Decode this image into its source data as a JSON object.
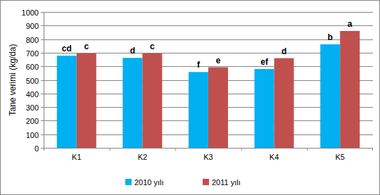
{
  "chart_data": {
    "type": "bar",
    "y_label": "Tane verimi (kg/da)",
    "categories": [
      "K1",
      "K2",
      "K3",
      "K4",
      "K5"
    ],
    "series": [
      {
        "name": "2010 yılı",
        "color": "#00b0f0",
        "values": [
          678,
          662,
          558,
          580,
          762
        ],
        "annotations": [
          "cd",
          "d",
          "f",
          "ef",
          "b"
        ]
      },
      {
        "name": "2011 yılı",
        "color": "#c0504d",
        "values": [
          695,
          695,
          593,
          660,
          860
        ],
        "annotations": [
          "c",
          "c",
          "e",
          "d",
          "a"
        ]
      }
    ],
    "ylim": [
      0,
      1000
    ],
    "yticks": [
      0,
      100,
      200,
      300,
      400,
      500,
      600,
      700,
      800,
      900,
      1000
    ],
    "grid": true,
    "legend": "bottom"
  }
}
